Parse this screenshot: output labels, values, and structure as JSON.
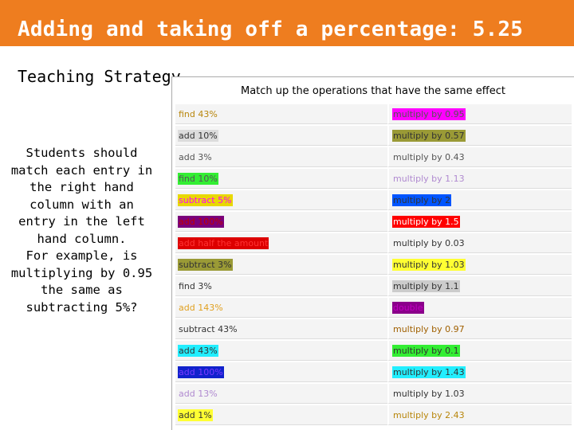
{
  "header": {
    "title": "Adding and taking off a percentage: 5.25",
    "color": "#ee7d1f"
  },
  "subtitle": "Teaching Strategy",
  "strategy_lines": [
    "Students should match each entry in the right hand column with an entry in the left hand column.",
    "For example, is multiplying by 0.95 the same as subtracting 5%?"
  ],
  "panel": {
    "title": "Match up the operations that have the same effect",
    "rows": [
      {
        "left": {
          "text": "find 43%",
          "color": "#b8860b",
          "bg": ""
        },
        "right": {
          "text": "multiply by 0.95",
          "color": "#555555",
          "bg": "#ff00ff"
        }
      },
      {
        "left": {
          "text": "add 10%",
          "color": "#333333",
          "bg": "#dcdcdc"
        },
        "right": {
          "text": "multiply by 0.57",
          "color": "#333333",
          "bg": "#9a9a36"
        }
      },
      {
        "left": {
          "text": "add 3%",
          "color": "#555555",
          "bg": ""
        },
        "right": {
          "text": "multiply by 0.43",
          "color": "#555555",
          "bg": ""
        }
      },
      {
        "left": {
          "text": "find 10%",
          "color": "#555555",
          "bg": "#33ee33"
        },
        "right": {
          "text": "multiply by 1.13",
          "color": "#b08ad0",
          "bg": ""
        }
      },
      {
        "left": {
          "text": "subtract 5%",
          "color": "#ff00ff",
          "bg": "#e8d800"
        },
        "right": {
          "text": "multiply by 2",
          "color": "#333333",
          "bg": "#0055ff"
        }
      },
      {
        "left": {
          "text": "add 100%",
          "color": "#c00000",
          "bg": "#7a007a"
        },
        "right": {
          "text": "multiply by 1.5",
          "color": "#ffffff",
          "bg": "#ff0000"
        }
      },
      {
        "left": {
          "text": "add half the amount",
          "color": "#ff3333",
          "bg": "#dd0000"
        },
        "right": {
          "text": "multiply by 0.03",
          "color": "#333333",
          "bg": ""
        }
      },
      {
        "left": {
          "text": "subtract 3%",
          "color": "#333333",
          "bg": "#9a9a36"
        },
        "right": {
          "text": "multiply by 1.03",
          "color": "#333333",
          "bg": "#ffff33"
        }
      },
      {
        "left": {
          "text": "find 3%",
          "color": "#333333",
          "bg": ""
        },
        "right": {
          "text": "multiply by 1.1",
          "color": "#333333",
          "bg": "#cccccc"
        }
      },
      {
        "left": {
          "text": "add 143%",
          "color": "#e0a020",
          "bg": ""
        },
        "right": {
          "text": "double",
          "color": "#c000c0",
          "bg": "#8b008b"
        }
      },
      {
        "left": {
          "text": "subtract 43%",
          "color": "#333333",
          "bg": ""
        },
        "right": {
          "text": "multiply by 0.97",
          "color": "#a06000",
          "bg": ""
        }
      },
      {
        "left": {
          "text": "add 43%",
          "color": "#333333",
          "bg": "#22eeff"
        },
        "right": {
          "text": "multiply by 0.1",
          "color": "#333333",
          "bg": "#33ee33"
        }
      },
      {
        "left": {
          "text": "add 100%",
          "color": "#7a3aff",
          "bg": "#1122cc"
        },
        "right": {
          "text": "multiply by 1.43",
          "color": "#333333",
          "bg": "#22eeff"
        }
      },
      {
        "left": {
          "text": "add 13%",
          "color": "#b08ad0",
          "bg": ""
        },
        "right": {
          "text": "multiply by 1.03",
          "color": "#333333",
          "bg": ""
        }
      },
      {
        "left": {
          "text": "add 1%",
          "color": "#333333",
          "bg": "#ffff33"
        },
        "right": {
          "text": "multiply by 2.43",
          "color": "#b8860b",
          "bg": ""
        }
      }
    ]
  }
}
